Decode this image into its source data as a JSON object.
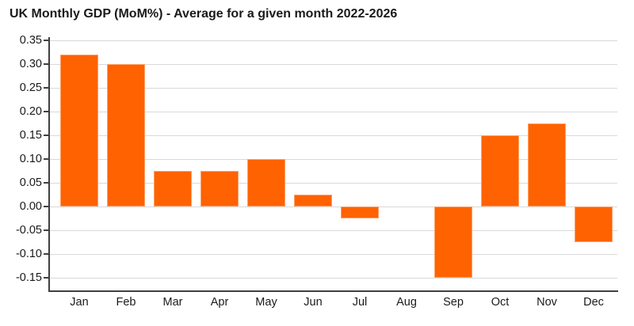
{
  "chart_data": {
    "type": "bar",
    "title": "UK Monthly GDP (MoM%) - Average for a given month 2022-2026",
    "categories": [
      "Jan",
      "Feb",
      "Mar",
      "Apr",
      "May",
      "Jun",
      "Jul",
      "Aug",
      "Sep",
      "Oct",
      "Nov",
      "Dec"
    ],
    "values": [
      0.32,
      0.3,
      0.075,
      0.075,
      0.1,
      0.025,
      -0.025,
      0.0,
      -0.15,
      0.15,
      0.175,
      -0.075
    ],
    "xlabel": "",
    "ylabel": "",
    "ylim": [
      -0.178,
      0.357
    ],
    "ytick_step": 0.05,
    "yticks": [
      0.35,
      0.3,
      0.25,
      0.2,
      0.15,
      0.1,
      0.05,
      0.0,
      -0.05,
      -0.1,
      -0.15
    ],
    "ytick_labels": [
      "0.35",
      "0.30",
      "0.25",
      "0.20",
      "0.15",
      "0.10",
      "0.05",
      "0.00",
      "-0.05",
      "-0.10",
      "-0.15"
    ],
    "grid": "horizontal",
    "legend": "none",
    "bar_color": "#FF6200",
    "gridline_color": "#D9D9D9",
    "axis_color": "#3F3F3F",
    "text_color": "#1A1A1A",
    "background": "#FFFFFF"
  }
}
